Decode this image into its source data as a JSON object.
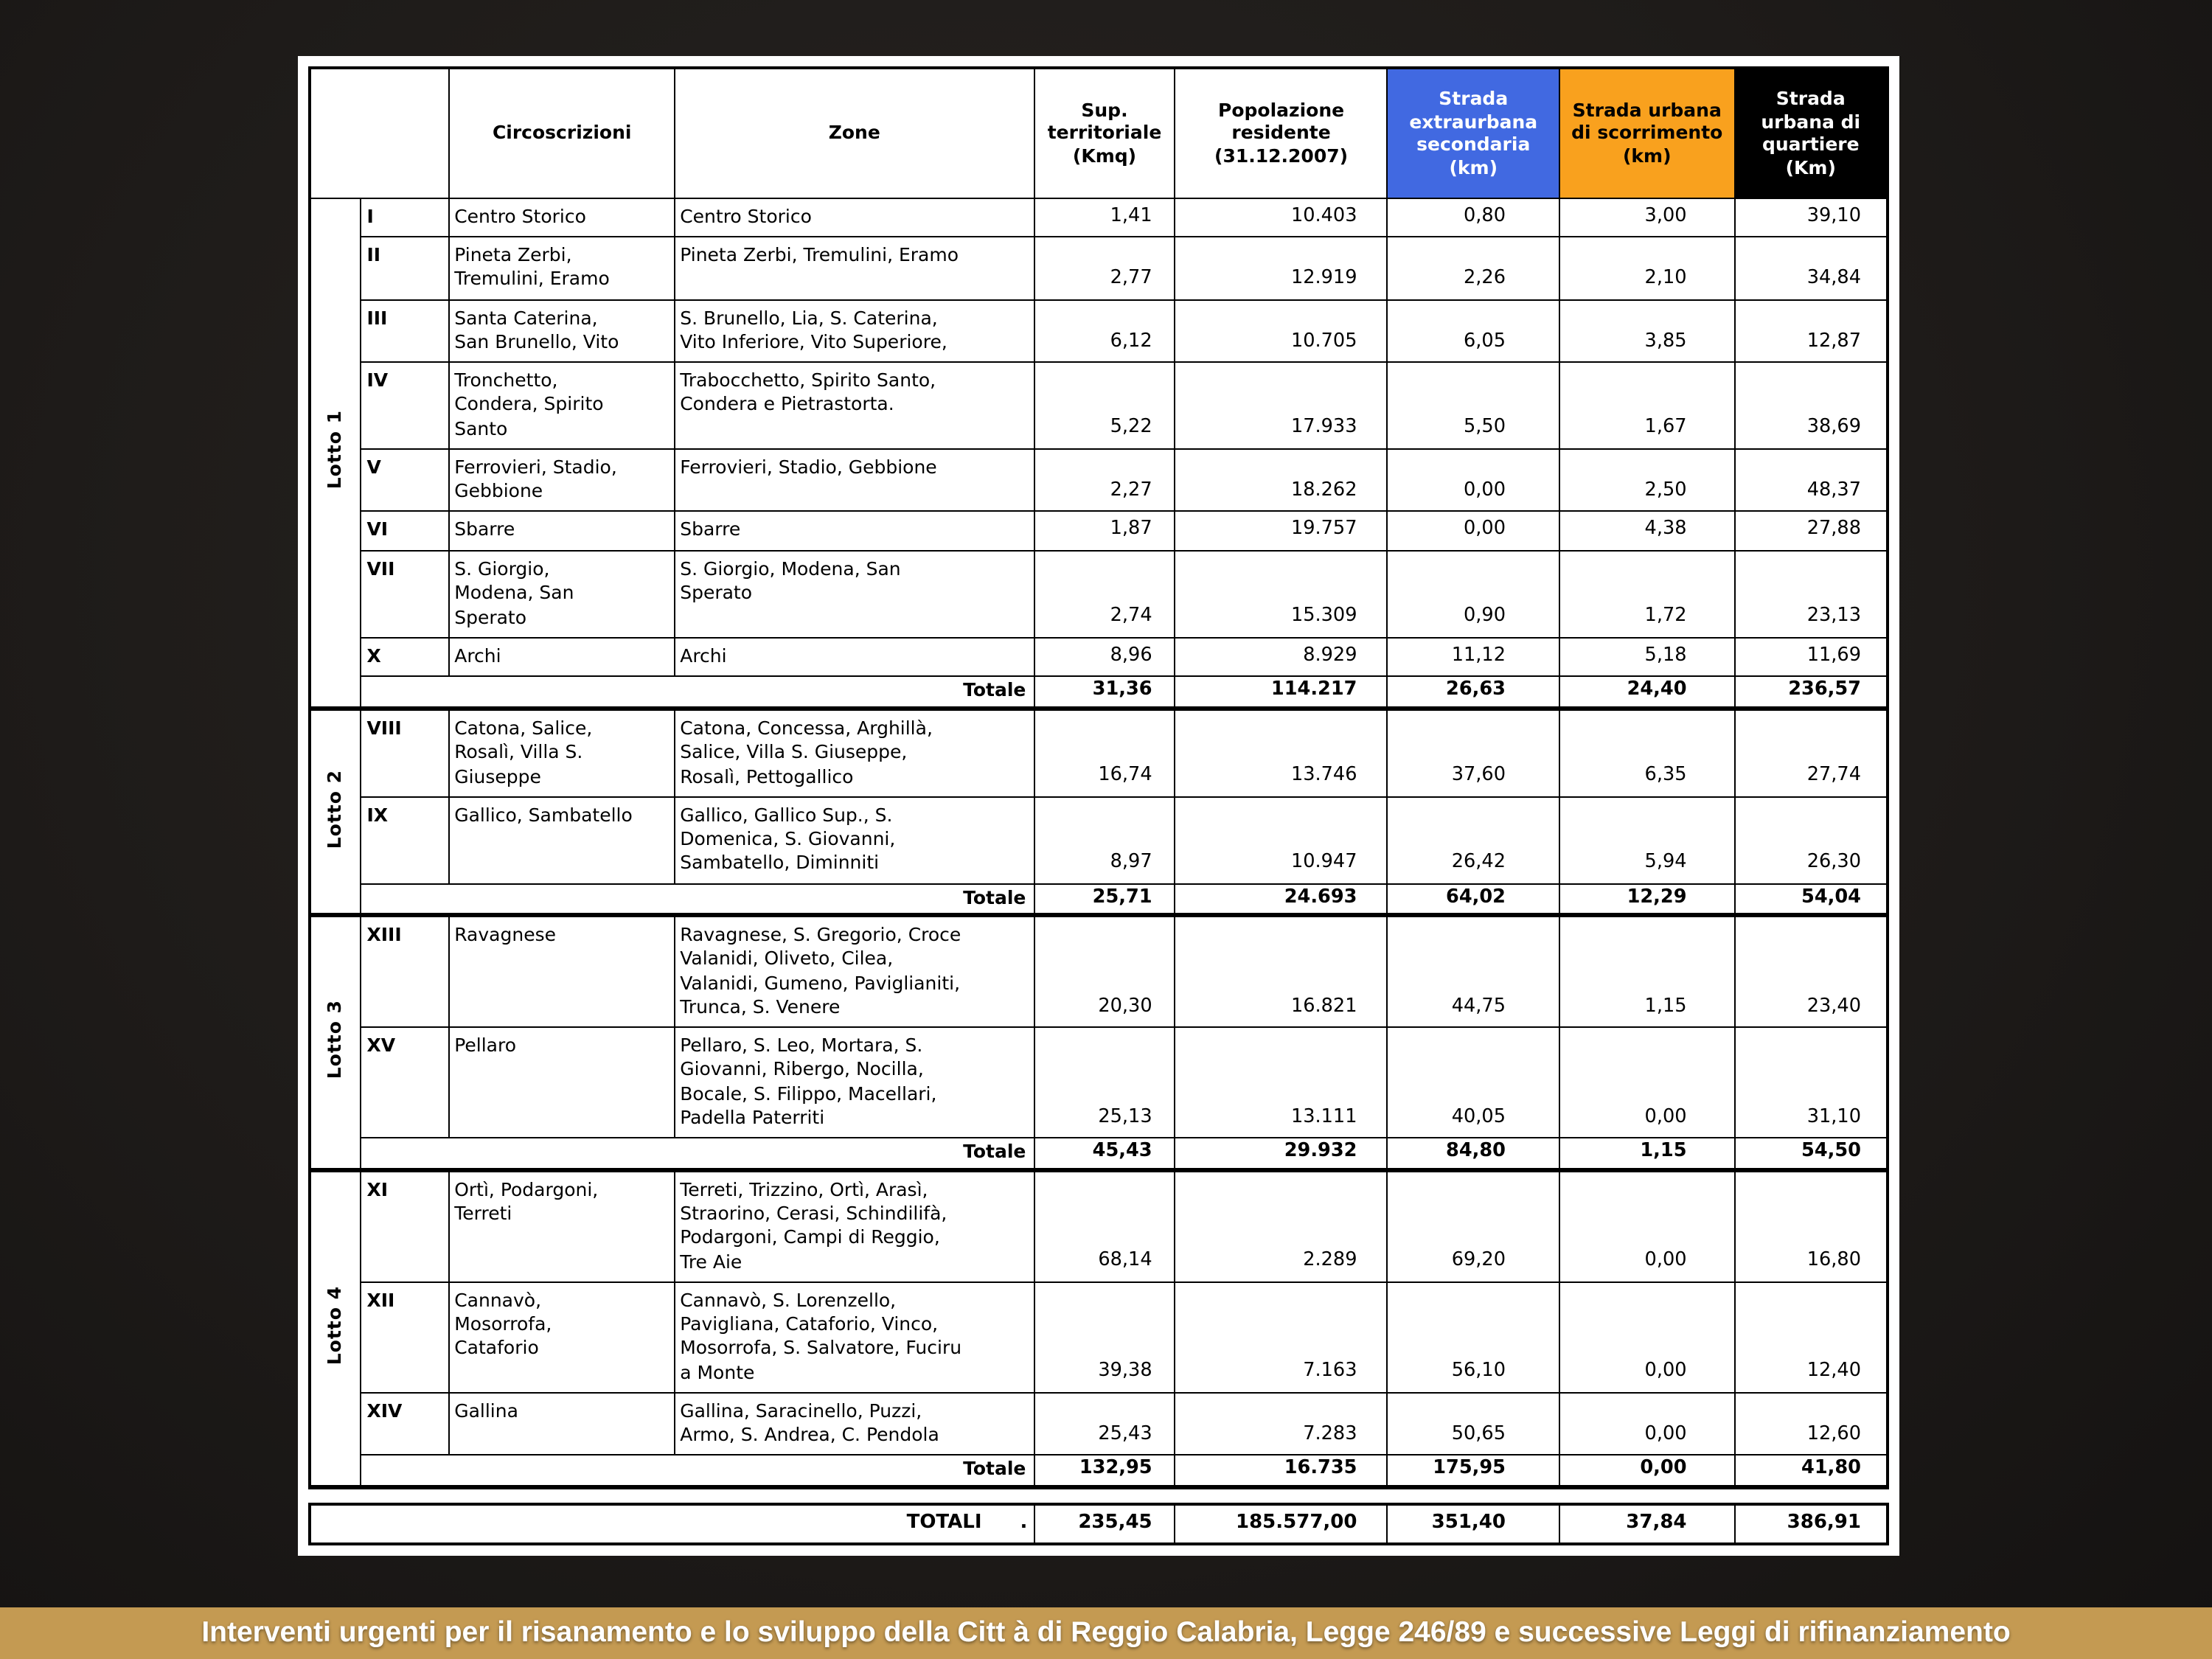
{
  "slide": {
    "banner": {
      "text": "Interventi urgenti per il risanamento e lo sviluppo della Citt à di Reggio Calabria, Legge 246/89 e successive Leggi di rifinanziamento",
      "background": "#c49a52",
      "text_color": "#ffffff"
    }
  },
  "table": {
    "header": {
      "circoscrizioni": "Circoscrizioni",
      "zone": "Zone",
      "sup": "Sup.\nterritoriale\n(Kmq)",
      "pop": "Popolazione\nresidente\n(31.12.2007)",
      "strada_extraurbana": "Strada\nextraurbana\nsecondaria\n(km)",
      "strada_scorrimento": "Strada urbana\ndi scorrimento\n(km)",
      "strada_quartiere": "Strada\nurbana di\nquartiere\n(Km)"
    },
    "header_colors": {
      "extraurbana_bg": "#4169e1",
      "extraurbana_fg": "#ffffff",
      "scorrimento_bg": "#f9a11e",
      "scorrimento_fg": "#000000",
      "quartiere_bg": "#000000",
      "quartiere_fg": "#ffffff"
    },
    "totale_label": "Totale",
    "groups": [
      {
        "lotto": "Lotto 1",
        "rows": [
          {
            "num": "I",
            "circ": "Centro Storico",
            "zone": "Centro Storico",
            "sup": "1,41",
            "pop": "10.403",
            "s1": "0,80",
            "s2": "3,00",
            "s3": "39,10"
          },
          {
            "num": "II",
            "circ": "Pineta Zerbi,\nTremulini, Eramo",
            "zone": "Pineta Zerbi, Tremulini, Eramo",
            "sup": "2,77",
            "pop": "12.919",
            "s1": "2,26",
            "s2": "2,10",
            "s3": "34,84"
          },
          {
            "num": "III",
            "circ": "Santa Caterina,\nSan Brunello, Vito",
            "zone": "S. Brunello, Lia, S. Caterina,\nVito Inferiore, Vito Superiore,",
            "sup": "6,12",
            "pop": "10.705",
            "s1": "6,05",
            "s2": "3,85",
            "s3": "12,87"
          },
          {
            "num": "IV",
            "circ": "Tronchetto,\nCondera, Spirito\nSanto",
            "zone": "Trabocchetto, Spirito Santo,\nCondera e Pietrastorta.",
            "sup": "5,22",
            "pop": "17.933",
            "s1": "5,50",
            "s2": "1,67",
            "s3": "38,69"
          },
          {
            "num": "V",
            "circ": "Ferrovieri, Stadio,\nGebbione",
            "zone": "Ferrovieri, Stadio, Gebbione",
            "sup": "2,27",
            "pop": "18.262",
            "s1": "0,00",
            "s2": "2,50",
            "s3": "48,37"
          },
          {
            "num": "VI",
            "circ": "Sbarre",
            "zone": "Sbarre",
            "sup": "1,87",
            "pop": "19.757",
            "s1": "0,00",
            "s2": "4,38",
            "s3": "27,88"
          },
          {
            "num": "VII",
            "circ": "S. Giorgio,\nModena, San\nSperato",
            "zone": "S. Giorgio, Modena, San\nSperato",
            "sup": "2,74",
            "pop": "15.309",
            "s1": "0,90",
            "s2": "1,72",
            "s3": "23,13"
          },
          {
            "num": "X",
            "circ": "Archi",
            "zone": "Archi",
            "sup": "8,96",
            "pop": "8.929",
            "s1": "11,12",
            "s2": "5,18",
            "s3": "11,69"
          }
        ],
        "totale": {
          "sup": "31,36",
          "pop": "114.217",
          "s1": "26,63",
          "s2": "24,40",
          "s3": "236,57"
        }
      },
      {
        "lotto": "Lotto 2",
        "rows": [
          {
            "num": "VIII",
            "circ": "Catona, Salice,\nRosalì, Villa S.\nGiuseppe",
            "zone": "Catona, Concessa, Arghillà,\nSalice, Villa S. Giuseppe,\nRosalì, Pettogallico",
            "sup": "16,74",
            "pop": "13.746",
            "s1": "37,60",
            "s2": "6,35",
            "s3": "27,74"
          },
          {
            "num": "IX",
            "circ": "Gallico, Sambatello",
            "zone": "Gallico, Gallico Sup., S.\nDomenica, S. Giovanni,\nSambatello, Diminniti",
            "sup": "8,97",
            "pop": "10.947",
            "s1": "26,42",
            "s2": "5,94",
            "s3": "26,30"
          }
        ],
        "totale": {
          "sup": "25,71",
          "pop": "24.693",
          "s1": "64,02",
          "s2": "12,29",
          "s3": "54,04"
        }
      },
      {
        "lotto": "Lotto 3",
        "rows": [
          {
            "num": "XIII",
            "circ": "Ravagnese",
            "zone": "Ravagnese, S. Gregorio, Croce\nValanidi, Oliveto, Cilea,\nValanidi, Gumeno, Paviglianiti,\nTrunca, S. Venere",
            "sup": "20,30",
            "pop": "16.821",
            "s1": "44,75",
            "s2": "1,15",
            "s3": "23,40"
          },
          {
            "num": "XV",
            "circ": "Pellaro",
            "zone": "Pellaro, S. Leo, Mortara, S.\nGiovanni, Ribergo, Nocilla,\nBocale, S. Filippo, Macellari,\nPadella Paterriti",
            "sup": "25,13",
            "pop": "13.111",
            "s1": "40,05",
            "s2": "0,00",
            "s3": "31,10"
          }
        ],
        "totale": {
          "sup": "45,43",
          "pop": "29.932",
          "s1": "84,80",
          "s2": "1,15",
          "s3": "54,50"
        }
      },
      {
        "lotto": "Lotto 4",
        "rows": [
          {
            "num": "XI",
            "circ": "Ortì, Podargoni,\nTerreti",
            "zone": "Terreti, Trizzino, Ortì, Arasì,\nStraorino, Cerasi, Schindilifà,\nPodargoni, Campi di Reggio,\nTre Aie",
            "sup": "68,14",
            "pop": "2.289",
            "s1": "69,20",
            "s2": "0,00",
            "s3": "16,80"
          },
          {
            "num": "XII",
            "circ": "Cannavò,\nMosorrofa,\nCataforio",
            "zone": "Cannavò, S. Lorenzello,\nPavigliana, Cataforio, Vinco,\nMosorrofa, S. Salvatore, Fuciru\na Monte",
            "sup": "39,38",
            "pop": "7.163",
            "s1": "56,10",
            "s2": "0,00",
            "s3": "12,40"
          },
          {
            "num": "XIV",
            "circ": "Gallina",
            "zone": "Gallina, Saracinello, Puzzi,\nArmo, S. Andrea, C. Pendola",
            "sup": "25,43",
            "pop": "7.283",
            "s1": "50,65",
            "s2": "0,00",
            "s3": "12,60"
          }
        ],
        "totale": {
          "sup": "132,95",
          "pop": "16.735",
          "s1": "175,95",
          "s2": "0,00",
          "s3": "41,80"
        }
      }
    ],
    "grand_total": {
      "label": "TOTALI",
      "dot": ".",
      "sup": "235,45",
      "pop": "185.577,00",
      "s1": "351,40",
      "s2": "37,84",
      "s3": "386,91"
    }
  }
}
